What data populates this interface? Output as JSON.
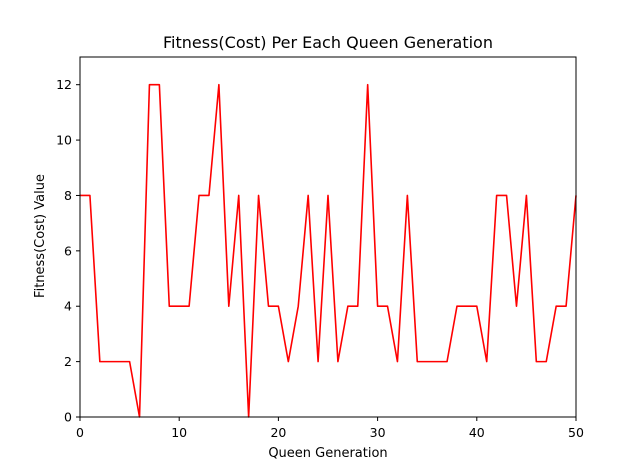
{
  "chart_data": {
    "type": "line",
    "title": "Fitness(Cost) Per Each Queen Generation",
    "xlabel": "Queen Generation",
    "ylabel": "Fitness(Cost) Value",
    "xlim": [
      0,
      50
    ],
    "ylim": [
      0,
      13
    ],
    "xticks": [
      0,
      10,
      20,
      30,
      40,
      50
    ],
    "yticks": [
      0,
      2,
      4,
      6,
      8,
      10,
      12
    ],
    "grid": false,
    "series": [
      {
        "color": "#ff0000",
        "x": [
          0,
          1,
          2,
          3,
          4,
          5,
          6,
          7,
          8,
          9,
          10,
          11,
          12,
          13,
          14,
          15,
          16,
          17,
          18,
          19,
          20,
          21,
          22,
          23,
          24,
          25,
          26,
          27,
          28,
          29,
          30,
          31,
          32,
          33,
          34,
          35,
          36,
          37,
          38,
          39,
          40,
          41,
          42,
          43,
          44,
          45,
          46,
          47,
          48,
          49,
          50
        ],
        "values": [
          8,
          8,
          2,
          2,
          2,
          2,
          0,
          12,
          12,
          4,
          4,
          4,
          8,
          8,
          12,
          4,
          8,
          0,
          8,
          4,
          4,
          2,
          4,
          8,
          2,
          8,
          2,
          4,
          4,
          12,
          4,
          4,
          2,
          8,
          2,
          2,
          2,
          2,
          4,
          4,
          4,
          2,
          8,
          8,
          4,
          8,
          2,
          2,
          4,
          4,
          8
        ]
      }
    ]
  }
}
